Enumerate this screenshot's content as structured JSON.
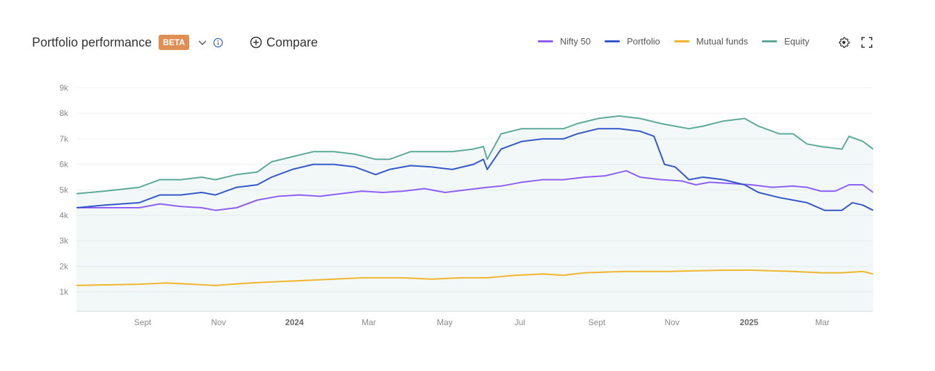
{
  "header": {
    "title": "Portfolio performance",
    "badge": "BETA",
    "compare_label": "Compare"
  },
  "icons": {
    "dropdown": "chevron-down-icon",
    "info": "info-icon",
    "compare": "plus-circle-icon",
    "settings": "gear-icon",
    "fullscreen": "fullscreen-icon"
  },
  "chart_data": {
    "type": "line",
    "title": "Portfolio performance",
    "xlabel": "",
    "ylabel": "",
    "x_unit": "months since mid-Jul 2023",
    "xlim": [
      0,
      21.2
    ],
    "ylim": [
      0.24,
      9
    ],
    "y_ticks": [
      {
        "v": 1,
        "label": "1k"
      },
      {
        "v": 2,
        "label": "2k"
      },
      {
        "v": 3,
        "label": "3k"
      },
      {
        "v": 4,
        "label": "4k"
      },
      {
        "v": 5,
        "label": "5k"
      },
      {
        "v": 6,
        "label": "6k"
      },
      {
        "v": 7,
        "label": "7k"
      },
      {
        "v": 8,
        "label": "8k"
      },
      {
        "v": 9,
        "label": "9k"
      }
    ],
    "x_ticks": [
      {
        "t": 1.76,
        "label": "Sept",
        "bold": false
      },
      {
        "t": 3.78,
        "label": "Nov",
        "bold": false
      },
      {
        "t": 5.8,
        "label": "2024",
        "bold": true
      },
      {
        "t": 7.78,
        "label": "Mar",
        "bold": false
      },
      {
        "t": 9.8,
        "label": "May",
        "bold": false
      },
      {
        "t": 11.8,
        "label": "Jul",
        "bold": false
      },
      {
        "t": 13.85,
        "label": "Sept",
        "bold": false
      },
      {
        "t": 15.85,
        "label": "Nov",
        "bold": false
      },
      {
        "t": 17.9,
        "label": "2025",
        "bold": true
      },
      {
        "t": 19.85,
        "label": "Mar",
        "bold": false
      }
    ],
    "grid": true,
    "legend_position": "top-right",
    "series": [
      {
        "name": "Nifty 50",
        "color": "#8b5cf6",
        "fill": false,
        "points": [
          [
            0,
            4.3
          ],
          [
            0.74,
            4.3
          ],
          [
            1.67,
            4.3
          ],
          [
            2.22,
            4.45
          ],
          [
            2.78,
            4.35
          ],
          [
            3.33,
            4.3
          ],
          [
            3.7,
            4.2
          ],
          [
            4.26,
            4.3
          ],
          [
            4.81,
            4.6
          ],
          [
            5.37,
            4.75
          ],
          [
            5.93,
            4.8
          ],
          [
            6.48,
            4.75
          ],
          [
            7.04,
            4.85
          ],
          [
            7.59,
            4.95
          ],
          [
            8.15,
            4.9
          ],
          [
            8.7,
            4.95
          ],
          [
            9.26,
            5.05
          ],
          [
            9.81,
            4.9
          ],
          [
            10.37,
            5.0
          ],
          [
            10.93,
            5.1
          ],
          [
            11.3,
            5.15
          ],
          [
            11.85,
            5.3
          ],
          [
            12.41,
            5.4
          ],
          [
            12.96,
            5.4
          ],
          [
            13.52,
            5.5
          ],
          [
            14.07,
            5.55
          ],
          [
            14.63,
            5.75
          ],
          [
            15,
            5.5
          ],
          [
            15.56,
            5.4
          ],
          [
            16.11,
            5.35
          ],
          [
            16.48,
            5.2
          ],
          [
            16.85,
            5.3
          ],
          [
            17.41,
            5.25
          ],
          [
            17.96,
            5.2
          ],
          [
            18.52,
            5.1
          ],
          [
            19.07,
            5.15
          ],
          [
            19.44,
            5.1
          ],
          [
            19.81,
            4.95
          ],
          [
            20.19,
            4.95
          ],
          [
            20.56,
            5.2
          ],
          [
            20.93,
            5.2
          ],
          [
            21.2,
            4.9
          ]
        ]
      },
      {
        "name": "Portfolio",
        "color": "#2f55c9",
        "fill": false,
        "points": [
          [
            0,
            4.3
          ],
          [
            0.74,
            4.4
          ],
          [
            1.67,
            4.5
          ],
          [
            2.22,
            4.8
          ],
          [
            2.78,
            4.8
          ],
          [
            3.33,
            4.9
          ],
          [
            3.7,
            4.8
          ],
          [
            4.26,
            5.1
          ],
          [
            4.81,
            5.2
          ],
          [
            5.19,
            5.5
          ],
          [
            5.74,
            5.8
          ],
          [
            6.3,
            6.0
          ],
          [
            6.85,
            6.0
          ],
          [
            7.41,
            5.9
          ],
          [
            7.96,
            5.6
          ],
          [
            8.33,
            5.8
          ],
          [
            8.89,
            5.95
          ],
          [
            9.44,
            5.9
          ],
          [
            10,
            5.8
          ],
          [
            10.56,
            6.0
          ],
          [
            10.83,
            6.2
          ],
          [
            10.93,
            5.8
          ],
          [
            11.3,
            6.6
          ],
          [
            11.85,
            6.9
          ],
          [
            12.41,
            7.0
          ],
          [
            12.96,
            7.0
          ],
          [
            13.33,
            7.2
          ],
          [
            13.89,
            7.4
          ],
          [
            14.44,
            7.4
          ],
          [
            15,
            7.3
          ],
          [
            15.37,
            7.1
          ],
          [
            15.65,
            6.0
          ],
          [
            15.93,
            5.9
          ],
          [
            16.3,
            5.4
          ],
          [
            16.67,
            5.5
          ],
          [
            17.22,
            5.4
          ],
          [
            17.78,
            5.2
          ],
          [
            18.15,
            4.9
          ],
          [
            18.7,
            4.7
          ],
          [
            19.07,
            4.6
          ],
          [
            19.44,
            4.5
          ],
          [
            19.91,
            4.2
          ],
          [
            20.37,
            4.2
          ],
          [
            20.65,
            4.5
          ],
          [
            20.93,
            4.4
          ],
          [
            21.2,
            4.2
          ]
        ]
      },
      {
        "name": "Mutual funds",
        "color": "#f0b429",
        "fill": false,
        "points": [
          [
            0,
            1.25
          ],
          [
            1.67,
            1.3
          ],
          [
            2.4,
            1.35
          ],
          [
            3.7,
            1.25
          ],
          [
            4.63,
            1.35
          ],
          [
            5.37,
            1.4
          ],
          [
            6.11,
            1.45
          ],
          [
            6.85,
            1.5
          ],
          [
            7.59,
            1.55
          ],
          [
            8.7,
            1.55
          ],
          [
            9.44,
            1.5
          ],
          [
            10.19,
            1.55
          ],
          [
            10.93,
            1.55
          ],
          [
            11.67,
            1.65
          ],
          [
            12.41,
            1.7
          ],
          [
            12.96,
            1.65
          ],
          [
            13.52,
            1.75
          ],
          [
            14.63,
            1.8
          ],
          [
            15.74,
            1.8
          ],
          [
            17.22,
            1.85
          ],
          [
            17.96,
            1.85
          ],
          [
            19.07,
            1.8
          ],
          [
            19.81,
            1.75
          ],
          [
            20.37,
            1.75
          ],
          [
            20.93,
            1.8
          ],
          [
            21.2,
            1.7
          ]
        ]
      },
      {
        "name": "Equity",
        "color": "#5aa898",
        "fill": true,
        "points": [
          [
            0,
            4.85
          ],
          [
            0.74,
            4.95
          ],
          [
            1.67,
            5.1
          ],
          [
            2.22,
            5.4
          ],
          [
            2.78,
            5.4
          ],
          [
            3.33,
            5.5
          ],
          [
            3.7,
            5.4
          ],
          [
            4.26,
            5.6
          ],
          [
            4.81,
            5.7
          ],
          [
            5.19,
            6.1
          ],
          [
            5.74,
            6.3
          ],
          [
            6.3,
            6.5
          ],
          [
            6.85,
            6.5
          ],
          [
            7.41,
            6.4
          ],
          [
            7.96,
            6.2
          ],
          [
            8.33,
            6.2
          ],
          [
            8.89,
            6.5
          ],
          [
            9.44,
            6.5
          ],
          [
            10,
            6.5
          ],
          [
            10.56,
            6.6
          ],
          [
            10.83,
            6.7
          ],
          [
            10.93,
            6.2
          ],
          [
            11.3,
            7.2
          ],
          [
            11.85,
            7.4
          ],
          [
            12.41,
            7.4
          ],
          [
            12.96,
            7.4
          ],
          [
            13.33,
            7.6
          ],
          [
            13.89,
            7.8
          ],
          [
            14.44,
            7.9
          ],
          [
            15,
            7.8
          ],
          [
            15.56,
            7.6
          ],
          [
            15.93,
            7.5
          ],
          [
            16.3,
            7.4
          ],
          [
            16.67,
            7.5
          ],
          [
            17.22,
            7.7
          ],
          [
            17.78,
            7.8
          ],
          [
            18.15,
            7.5
          ],
          [
            18.7,
            7.2
          ],
          [
            19.07,
            7.2
          ],
          [
            19.44,
            6.8
          ],
          [
            19.81,
            6.7
          ],
          [
            20.37,
            6.6
          ],
          [
            20.56,
            7.1
          ],
          [
            20.93,
            6.9
          ],
          [
            21.2,
            6.6
          ]
        ]
      }
    ]
  }
}
